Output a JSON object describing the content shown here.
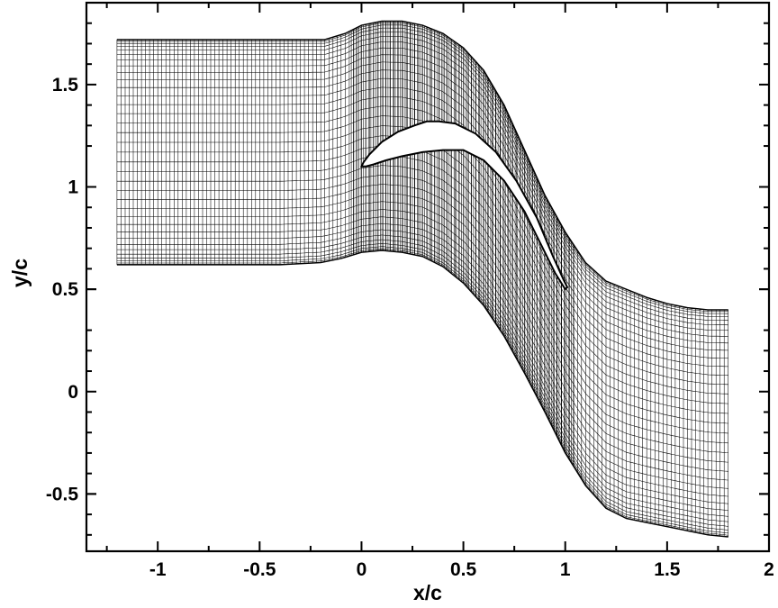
{
  "chart_data": {
    "type": "line",
    "title": "",
    "xlabel": "x/c",
    "ylabel": "y/c",
    "xlim": [
      -1.35,
      2.0
    ],
    "ylim": [
      -0.78,
      1.9
    ],
    "x_ticks": [
      "-1",
      "-0.5",
      "0",
      "0.5",
      "1",
      "1.5",
      "2"
    ],
    "y_ticks": [
      "1.5",
      "1",
      "0.5",
      "0",
      "-0.5"
    ],
    "grid": false,
    "legend": "none",
    "series": [
      {
        "x": [
          -1.2,
          -0.8,
          -0.4,
          -0.18,
          -0.08,
          0.0,
          0.1,
          0.2,
          0.3,
          0.4,
          0.5,
          0.6,
          0.7,
          0.8,
          0.9,
          1.0,
          1.1,
          1.2,
          1.3,
          1.4,
          1.5,
          1.6,
          1.7,
          1.8
        ],
        "y": [
          1.72,
          1.72,
          1.72,
          1.72,
          1.75,
          1.79,
          1.81,
          1.81,
          1.79,
          1.75,
          1.68,
          1.57,
          1.4,
          1.18,
          0.96,
          0.78,
          0.63,
          0.54,
          0.5,
          0.46,
          0.43,
          0.41,
          0.4,
          0.4
        ]
      },
      {
        "x": [
          -1.2,
          -0.8,
          -0.4,
          -0.2,
          -0.1,
          0.0,
          0.1,
          0.2,
          0.3,
          0.4,
          0.5,
          0.6,
          0.7,
          0.8,
          0.9,
          1.0,
          1.1,
          1.2,
          1.3,
          1.4,
          1.5,
          1.6,
          1.7,
          1.8
        ],
        "y": [
          0.62,
          0.62,
          0.62,
          0.63,
          0.65,
          0.68,
          0.69,
          0.68,
          0.66,
          0.61,
          0.53,
          0.42,
          0.27,
          0.09,
          -0.1,
          -0.3,
          -0.46,
          -0.57,
          -0.62,
          -0.64,
          -0.66,
          -0.68,
          -0.7,
          -0.71
        ]
      },
      {
        "x": [
          1.0,
          0.95,
          0.88,
          0.8,
          0.7,
          0.6,
          0.5,
          0.4,
          0.3,
          0.2,
          0.12,
          0.06,
          0.02,
          0.0,
          0.01,
          0.04,
          0.1,
          0.18,
          0.26,
          0.32,
          0.38,
          0.46,
          0.56,
          0.66,
          0.76,
          0.86,
          0.94,
          0.99,
          1.01,
          1.0
        ],
        "y": [
          0.5,
          0.58,
          0.72,
          0.88,
          1.03,
          1.13,
          1.18,
          1.18,
          1.17,
          1.15,
          1.13,
          1.11,
          1.1,
          1.1,
          1.12,
          1.16,
          1.22,
          1.27,
          1.3,
          1.32,
          1.32,
          1.31,
          1.26,
          1.17,
          1.03,
          0.85,
          0.66,
          0.55,
          0.51,
          0.5
        ]
      }
    ],
    "mesh": {
      "streamwise_lines": 150,
      "pitchwise_lines": 36
    }
  }
}
